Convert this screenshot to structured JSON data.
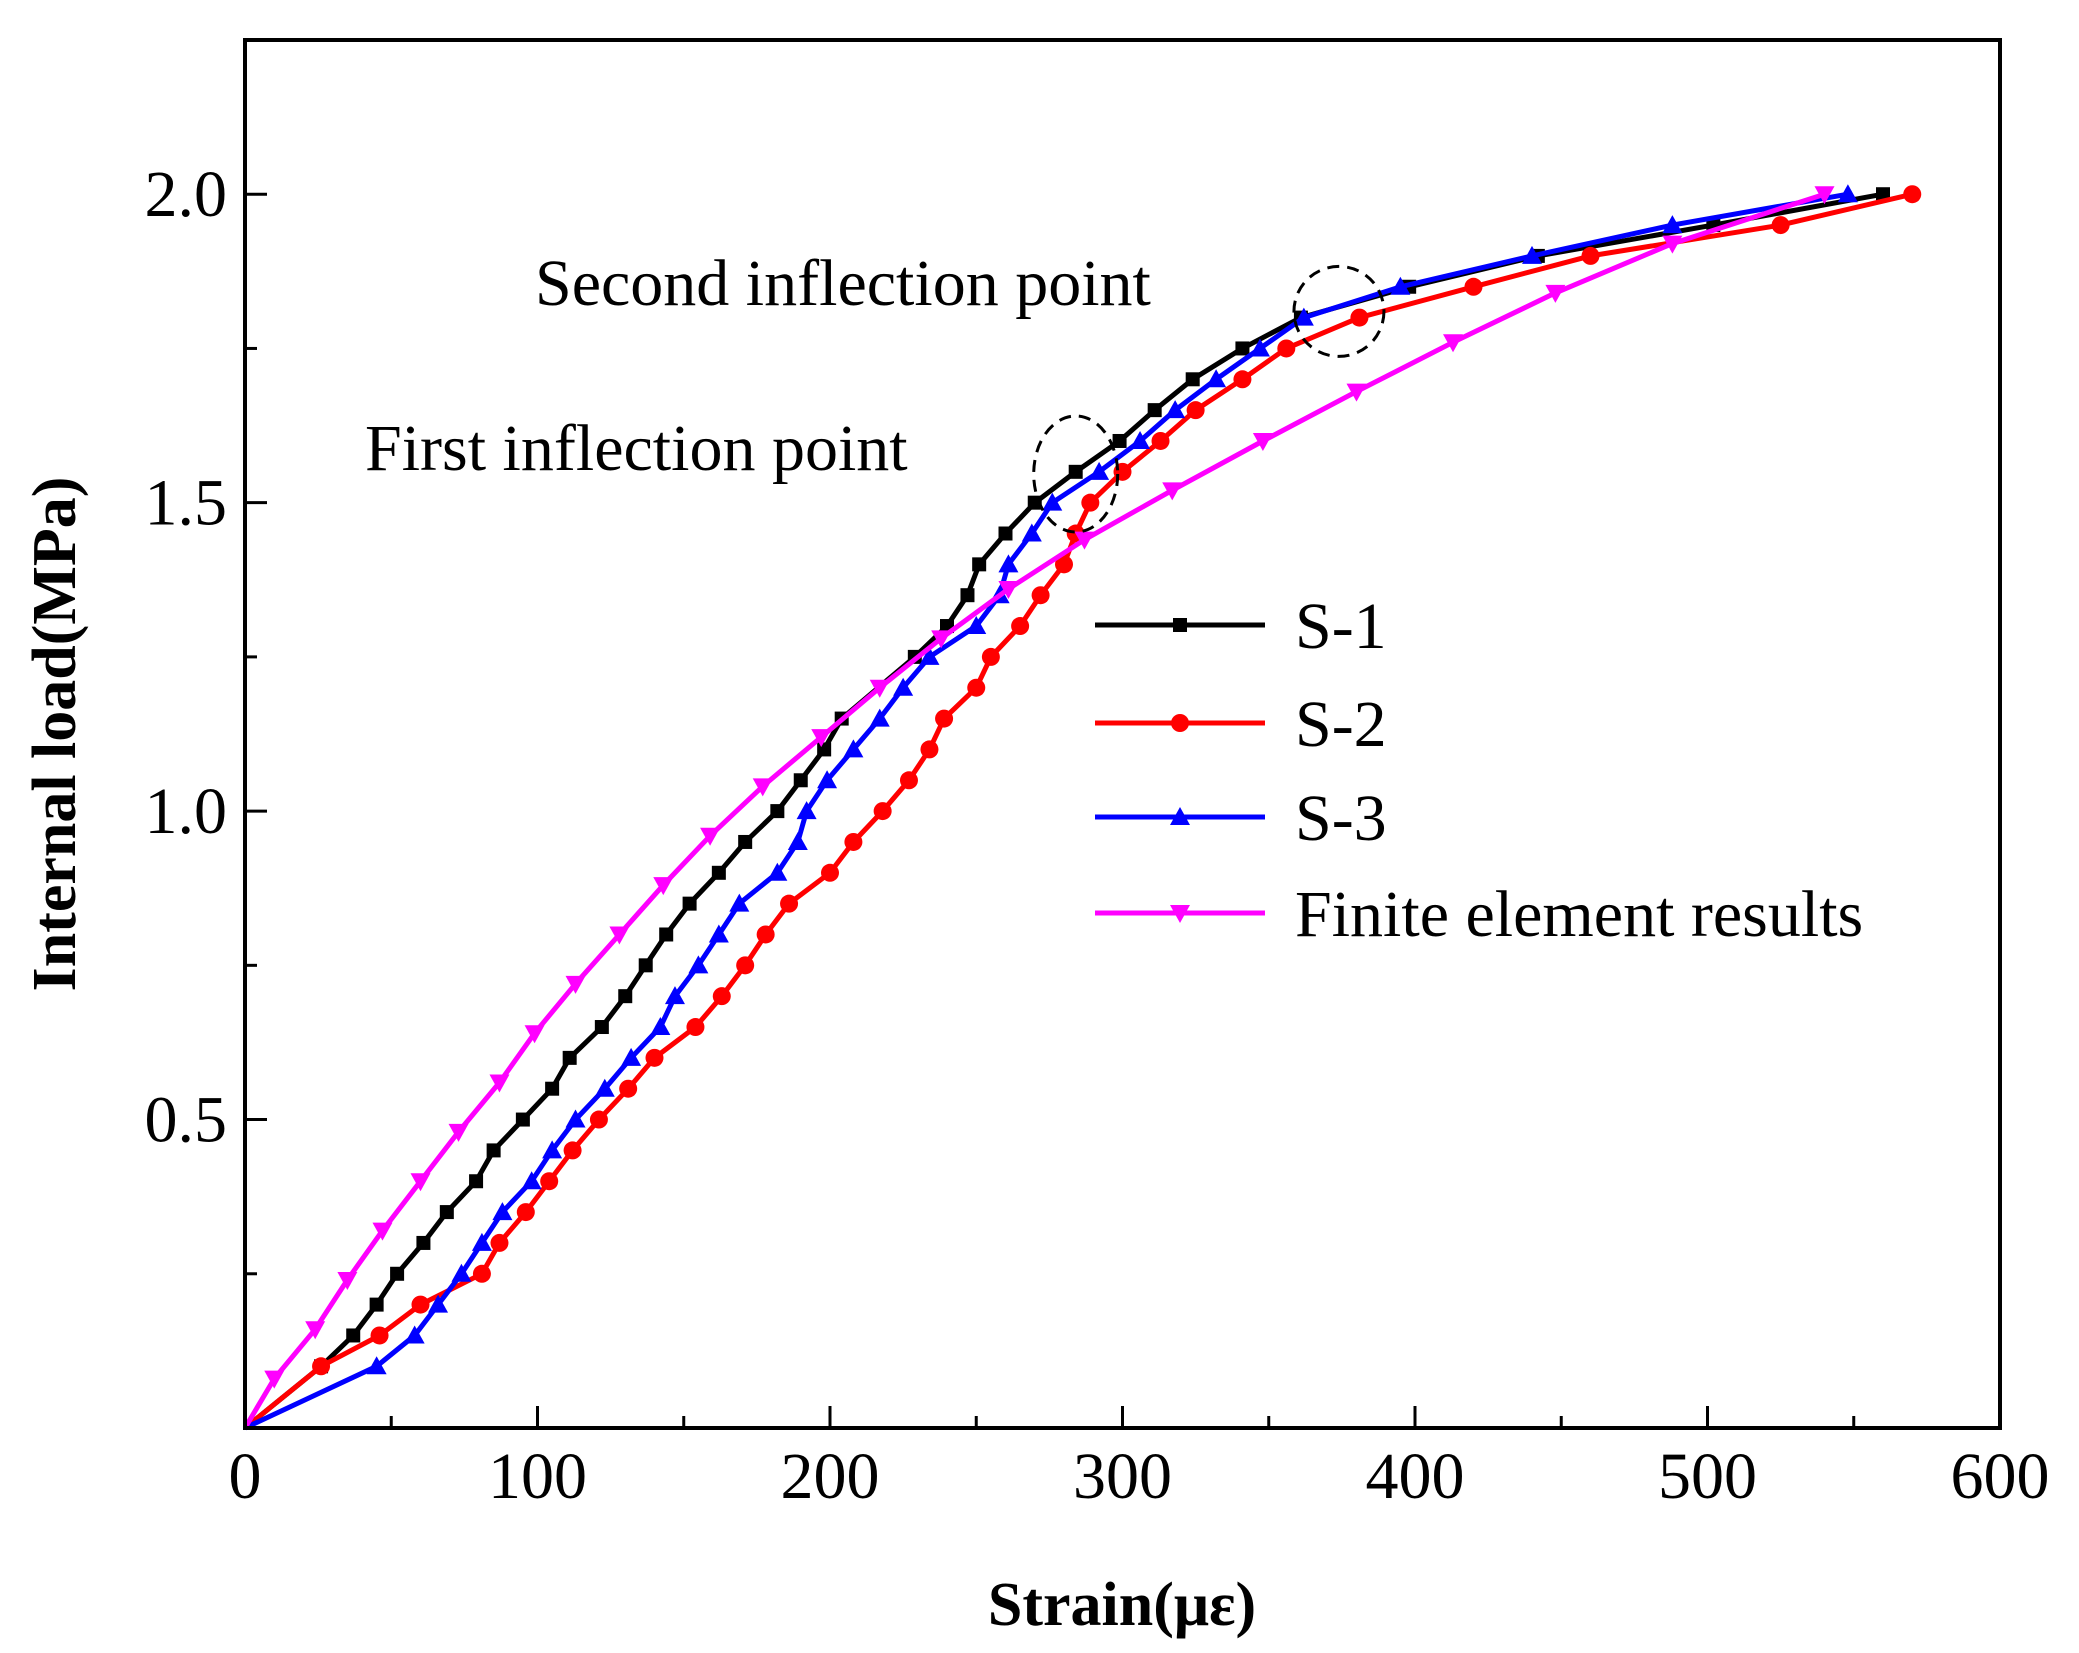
{
  "chart_data": {
    "type": "line",
    "title": "",
    "xlabel": "Strain(με)",
    "ylabel": "Internal load(MPa)",
    "xlim": [
      0,
      600
    ],
    "ylim": [
      0,
      2.25
    ],
    "xticks": [
      0,
      100,
      200,
      300,
      400,
      500,
      600
    ],
    "xtick_labels": [
      "0",
      "100",
      "200",
      "300",
      "400",
      "500",
      "600"
    ],
    "yticks": [
      0.5,
      1.0,
      1.5,
      2.0
    ],
    "ytick_labels": [
      "0.5",
      "1.0",
      "1.5",
      "2.0"
    ],
    "grid": false,
    "legend_position": "center-right",
    "series": [
      {
        "name": "S-1",
        "color": "#000000",
        "marker": "square",
        "points": [
          [
            0,
            0
          ],
          [
            26,
            0.1
          ],
          [
            37,
            0.15
          ],
          [
            45,
            0.2
          ],
          [
            52,
            0.25
          ],
          [
            61,
            0.3
          ],
          [
            69,
            0.35
          ],
          [
            79,
            0.4
          ],
          [
            85,
            0.45
          ],
          [
            95,
            0.5
          ],
          [
            105,
            0.55
          ],
          [
            111,
            0.6
          ],
          [
            122,
            0.65
          ],
          [
            130,
            0.7
          ],
          [
            137,
            0.75
          ],
          [
            144,
            0.8
          ],
          [
            152,
            0.85
          ],
          [
            162,
            0.9
          ],
          [
            171,
            0.95
          ],
          [
            182,
            1.0
          ],
          [
            190,
            1.05
          ],
          [
            198,
            1.1
          ],
          [
            204,
            1.15
          ],
          [
            229,
            1.25
          ],
          [
            240,
            1.3
          ],
          [
            247,
            1.35
          ],
          [
            251,
            1.4
          ],
          [
            260,
            1.45
          ],
          [
            270,
            1.5
          ],
          [
            284,
            1.55
          ],
          [
            299,
            1.6
          ],
          [
            311,
            1.65
          ],
          [
            324,
            1.7
          ],
          [
            341,
            1.75
          ],
          [
            361,
            1.8
          ],
          [
            398,
            1.85
          ],
          [
            442,
            1.9
          ],
          [
            502,
            1.95
          ],
          [
            560,
            2.0
          ]
        ]
      },
      {
        "name": "S-2",
        "color": "#ff0000",
        "marker": "circle",
        "points": [
          [
            0,
            0
          ],
          [
            26,
            0.1
          ],
          [
            46,
            0.15
          ],
          [
            60,
            0.2
          ],
          [
            81,
            0.25
          ],
          [
            87,
            0.3
          ],
          [
            96,
            0.35
          ],
          [
            104,
            0.4
          ],
          [
            112,
            0.45
          ],
          [
            121,
            0.5
          ],
          [
            131,
            0.55
          ],
          [
            140,
            0.6
          ],
          [
            154,
            0.65
          ],
          [
            163,
            0.7
          ],
          [
            171,
            0.75
          ],
          [
            178,
            0.8
          ],
          [
            186,
            0.85
          ],
          [
            200,
            0.9
          ],
          [
            208,
            0.95
          ],
          [
            218,
            1.0
          ],
          [
            227,
            1.05
          ],
          [
            234,
            1.1
          ],
          [
            239,
            1.15
          ],
          [
            250,
            1.2
          ],
          [
            255,
            1.25
          ],
          [
            265,
            1.3
          ],
          [
            272,
            1.35
          ],
          [
            280,
            1.4
          ],
          [
            284,
            1.45
          ],
          [
            289,
            1.5
          ],
          [
            300,
            1.55
          ],
          [
            313,
            1.6
          ],
          [
            325,
            1.65
          ],
          [
            341,
            1.7
          ],
          [
            356,
            1.75
          ],
          [
            381,
            1.8
          ],
          [
            420,
            1.85
          ],
          [
            460,
            1.9
          ],
          [
            525,
            1.95
          ],
          [
            570,
            2.0
          ]
        ]
      },
      {
        "name": "S-3",
        "color": "#0000ff",
        "marker": "triangle-up",
        "points": [
          [
            0,
            0
          ],
          [
            45,
            0.1
          ],
          [
            58,
            0.15
          ],
          [
            66,
            0.2
          ],
          [
            74,
            0.25
          ],
          [
            81,
            0.3
          ],
          [
            88,
            0.35
          ],
          [
            98,
            0.4
          ],
          [
            105,
            0.45
          ],
          [
            113,
            0.5
          ],
          [
            123,
            0.55
          ],
          [
            132,
            0.6
          ],
          [
            142,
            0.65
          ],
          [
            147,
            0.7
          ],
          [
            155,
            0.75
          ],
          [
            162,
            0.8
          ],
          [
            169,
            0.85
          ],
          [
            182,
            0.9
          ],
          [
            189,
            0.95
          ],
          [
            192,
            1.0
          ],
          [
            199,
            1.05
          ],
          [
            208,
            1.1
          ],
          [
            217,
            1.15
          ],
          [
            225,
            1.2
          ],
          [
            234,
            1.25
          ],
          [
            250,
            1.3
          ],
          [
            258,
            1.35
          ],
          [
            261,
            1.4
          ],
          [
            269,
            1.45
          ],
          [
            276,
            1.5
          ],
          [
            292,
            1.55
          ],
          [
            306,
            1.6
          ],
          [
            318,
            1.65
          ],
          [
            332,
            1.7
          ],
          [
            347,
            1.75
          ],
          [
            362,
            1.8
          ],
          [
            395,
            1.85
          ],
          [
            440,
            1.9
          ],
          [
            488,
            1.95
          ],
          [
            548,
            2.0
          ]
        ]
      },
      {
        "name": "Finite element results",
        "color": "#ff00ff",
        "marker": "triangle-down",
        "points": [
          [
            0,
            0
          ],
          [
            10,
            0.08
          ],
          [
            24,
            0.16
          ],
          [
            35,
            0.24
          ],
          [
            47,
            0.32
          ],
          [
            60,
            0.4
          ],
          [
            73,
            0.48
          ],
          [
            87,
            0.56
          ],
          [
            99,
            0.64
          ],
          [
            113,
            0.72
          ],
          [
            128,
            0.8
          ],
          [
            143,
            0.88
          ],
          [
            159,
            0.96
          ],
          [
            177,
            1.04
          ],
          [
            197,
            1.12
          ],
          [
            217,
            1.2
          ],
          [
            238,
            1.28
          ],
          [
            261,
            1.36
          ],
          [
            287,
            1.44
          ],
          [
            317,
            1.52
          ],
          [
            348,
            1.6
          ],
          [
            380,
            1.68
          ],
          [
            413,
            1.76
          ],
          [
            448,
            1.84
          ],
          [
            488,
            1.92
          ],
          [
            540,
            2.0
          ]
        ]
      }
    ],
    "annotations": [
      {
        "text": "First inflection point",
        "x": 284,
        "y": 1.54
      },
      {
        "text": "Second inflection point",
        "x": 374,
        "y": 1.81
      }
    ]
  }
}
